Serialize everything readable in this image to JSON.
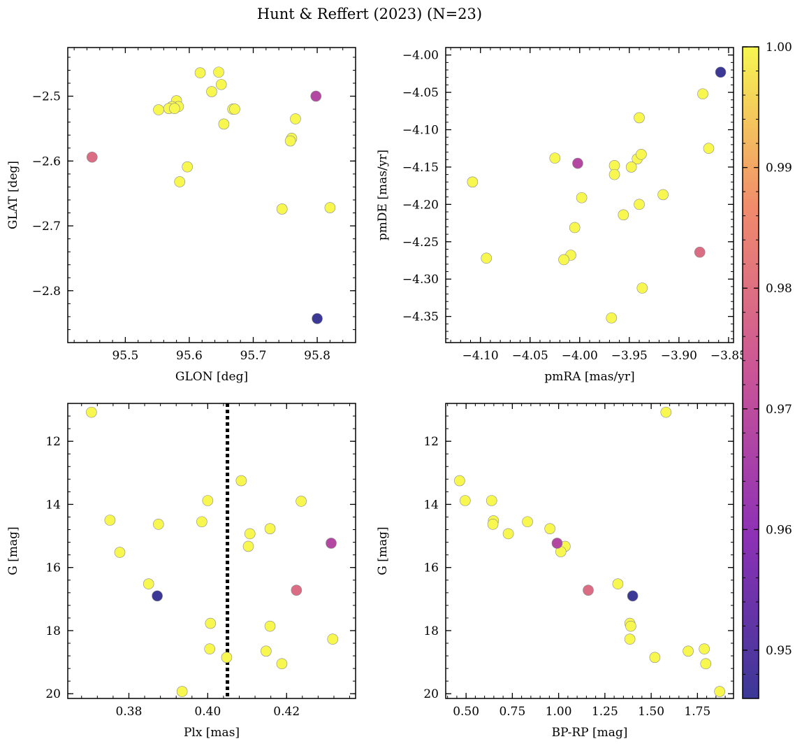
{
  "title": "Hunt & Reffert (2023) (N=23)",
  "colorbar": {
    "vmin": 0.946,
    "vmax": 1.0,
    "ticks": [
      0.95,
      0.96,
      0.97,
      0.98,
      0.99,
      1.0
    ],
    "tick_labels": [
      "0.95",
      "0.96",
      "0.97",
      "0.98",
      "0.99",
      "1.00"
    ],
    "colormap": "plasma"
  },
  "chart_data": [
    {
      "type": "scatter",
      "id": "glon-glat",
      "xlabel": "GLON [deg]",
      "ylabel": "GLAT [deg]",
      "xlim": [
        95.41,
        95.86
      ],
      "ylim": [
        -2.88,
        -2.425
      ],
      "y_inverted": false,
      "xticks": [
        95.5,
        95.6,
        95.7,
        95.8
      ],
      "xtick_labels": [
        "95.5",
        "95.6",
        "95.7",
        "95.8"
      ],
      "yticks": [
        -2.5,
        -2.6,
        -2.7,
        -2.8
      ],
      "ytick_labels": [
        "−2.5",
        "−2.6",
        "−2.7",
        "−2.8"
      ],
      "points": [
        {
          "x": 95.617,
          "y": -2.464,
          "c": 1.0
        },
        {
          "x": 95.646,
          "y": -2.463,
          "c": 1.0
        },
        {
          "x": 95.65,
          "y": -2.482,
          "c": 1.0
        },
        {
          "x": 95.635,
          "y": -2.493,
          "c": 1.0
        },
        {
          "x": 95.58,
          "y": -2.507,
          "c": 1.0
        },
        {
          "x": 95.583,
          "y": -2.516,
          "c": 1.0
        },
        {
          "x": 95.573,
          "y": -2.516,
          "c": 1.0
        },
        {
          "x": 95.552,
          "y": -2.521,
          "c": 1.0
        },
        {
          "x": 95.568,
          "y": -2.519,
          "c": 1.0
        },
        {
          "x": 95.577,
          "y": -2.519,
          "c": 1.0
        },
        {
          "x": 95.668,
          "y": -2.52,
          "c": 1.0
        },
        {
          "x": 95.671,
          "y": -2.52,
          "c": 1.0
        },
        {
          "x": 95.654,
          "y": -2.543,
          "c": 1.0
        },
        {
          "x": 95.766,
          "y": -2.535,
          "c": 1.0
        },
        {
          "x": 95.76,
          "y": -2.565,
          "c": 1.0
        },
        {
          "x": 95.758,
          "y": -2.569,
          "c": 1.0
        },
        {
          "x": 95.597,
          "y": -2.609,
          "c": 1.0
        },
        {
          "x": 95.585,
          "y": -2.632,
          "c": 1.0
        },
        {
          "x": 95.745,
          "y": -2.674,
          "c": 1.0
        },
        {
          "x": 95.82,
          "y": -2.672,
          "c": 1.0
        },
        {
          "x": 95.798,
          "y": -2.5,
          "c": 0.968
        },
        {
          "x": 95.448,
          "y": -2.594,
          "c": 0.979
        },
        {
          "x": 95.8,
          "y": -2.843,
          "c": 0.946
        }
      ]
    },
    {
      "type": "scatter",
      "id": "pm",
      "xlabel": "pmRA [mas/yr]",
      "ylabel": "pmDE [mas/yr]",
      "xlim": [
        -4.135,
        -3.845
      ],
      "ylim": [
        -4.385,
        -3.99
      ],
      "y_inverted": false,
      "xticks": [
        -4.1,
        -4.05,
        -4.0,
        -3.95,
        -3.9,
        -3.85
      ],
      "xtick_labels": [
        "−4.10",
        "−4.05",
        "−4.00",
        "−3.95",
        "−3.90",
        "−3.85"
      ],
      "yticks": [
        -4.0,
        -4.05,
        -4.1,
        -4.15,
        -4.2,
        -4.25,
        -4.3,
        -4.35
      ],
      "ytick_labels": [
        "−4.00",
        "−4.05",
        "−4.10",
        "−4.15",
        "−4.20",
        "−4.25",
        "−4.30",
        "−4.35"
      ],
      "points": [
        {
          "x": -3.876,
          "y": -4.052,
          "c": 1.0
        },
        {
          "x": -3.94,
          "y": -4.084,
          "c": 1.0
        },
        {
          "x": -3.87,
          "y": -4.125,
          "c": 1.0
        },
        {
          "x": -4.025,
          "y": -4.138,
          "c": 1.0
        },
        {
          "x": -3.942,
          "y": -4.139,
          "c": 1.0
        },
        {
          "x": -3.938,
          "y": -4.133,
          "c": 1.0
        },
        {
          "x": -3.965,
          "y": -4.148,
          "c": 1.0
        },
        {
          "x": -3.948,
          "y": -4.15,
          "c": 1.0
        },
        {
          "x": -3.965,
          "y": -4.16,
          "c": 1.0
        },
        {
          "x": -4.108,
          "y": -4.17,
          "c": 1.0
        },
        {
          "x": -3.916,
          "y": -4.187,
          "c": 1.0
        },
        {
          "x": -3.998,
          "y": -4.191,
          "c": 1.0
        },
        {
          "x": -3.94,
          "y": -4.2,
          "c": 1.0
        },
        {
          "x": -3.956,
          "y": -4.214,
          "c": 1.0
        },
        {
          "x": -4.005,
          "y": -4.231,
          "c": 1.0
        },
        {
          "x": -4.009,
          "y": -4.268,
          "c": 1.0
        },
        {
          "x": -4.016,
          "y": -4.274,
          "c": 1.0
        },
        {
          "x": -4.094,
          "y": -4.272,
          "c": 1.0
        },
        {
          "x": -3.937,
          "y": -4.312,
          "c": 1.0
        },
        {
          "x": -3.968,
          "y": -4.352,
          "c": 1.0
        },
        {
          "x": -4.002,
          "y": -4.145,
          "c": 0.968
        },
        {
          "x": -3.879,
          "y": -4.264,
          "c": 0.979
        },
        {
          "x": -3.858,
          "y": -4.023,
          "c": 0.946
        }
      ]
    },
    {
      "type": "scatter",
      "id": "plx-g",
      "xlabel": "Plx [mas]",
      "ylabel": "G [mag]",
      "xlim": [
        0.3645,
        0.4375
      ],
      "ylim": [
        20.15,
        10.8
      ],
      "y_inverted": true,
      "xticks": [
        0.38,
        0.4,
        0.42
      ],
      "xtick_labels": [
        "0.38",
        "0.40",
        "0.42"
      ],
      "yticks": [
        12,
        14,
        16,
        18,
        20
      ],
      "ytick_labels": [
        "12",
        "14",
        "16",
        "18",
        "20"
      ],
      "vline": {
        "x": 0.405,
        "style": "dotted"
      },
      "points": [
        {
          "x": 0.3705,
          "y": 11.08,
          "c": 1.0
        },
        {
          "x": 0.4085,
          "y": 13.25,
          "c": 1.0
        },
        {
          "x": 0.4,
          "y": 13.88,
          "c": 1.0
        },
        {
          "x": 0.4237,
          "y": 13.9,
          "c": 1.0
        },
        {
          "x": 0.3752,
          "y": 14.5,
          "c": 1.0
        },
        {
          "x": 0.3985,
          "y": 14.55,
          "c": 1.0
        },
        {
          "x": 0.3875,
          "y": 14.63,
          "c": 1.0
        },
        {
          "x": 0.4158,
          "y": 14.77,
          "c": 1.0
        },
        {
          "x": 0.4107,
          "y": 14.93,
          "c": 1.0
        },
        {
          "x": 0.4103,
          "y": 15.33,
          "c": 1.0
        },
        {
          "x": 0.3777,
          "y": 15.52,
          "c": 1.0
        },
        {
          "x": 0.385,
          "y": 16.52,
          "c": 1.0
        },
        {
          "x": 0.4007,
          "y": 17.77,
          "c": 1.0
        },
        {
          "x": 0.4158,
          "y": 17.86,
          "c": 1.0
        },
        {
          "x": 0.4317,
          "y": 18.27,
          "c": 1.0
        },
        {
          "x": 0.4005,
          "y": 18.58,
          "c": 1.0
        },
        {
          "x": 0.4148,
          "y": 18.65,
          "c": 1.0
        },
        {
          "x": 0.4048,
          "y": 18.85,
          "c": 1.0
        },
        {
          "x": 0.4188,
          "y": 19.05,
          "c": 1.0
        },
        {
          "x": 0.3935,
          "y": 19.93,
          "c": 1.0
        },
        {
          "x": 0.4313,
          "y": 15.23,
          "c": 0.968
        },
        {
          "x": 0.4225,
          "y": 16.72,
          "c": 0.979
        },
        {
          "x": 0.3872,
          "y": 16.9,
          "c": 0.946
        }
      ]
    },
    {
      "type": "scatter",
      "id": "cmd",
      "xlabel": "BP-RP [mag]",
      "ylabel": "G [mag]",
      "xlim": [
        0.39,
        1.945
      ],
      "ylim": [
        20.15,
        10.8
      ],
      "y_inverted": true,
      "xticks": [
        0.5,
        0.75,
        1.0,
        1.25,
        1.5,
        1.75
      ],
      "xtick_labels": [
        "0.50",
        "0.75",
        "1.00",
        "1.25",
        "1.50",
        "1.75"
      ],
      "yticks": [
        12,
        14,
        16,
        18,
        20
      ],
      "ytick_labels": [
        "12",
        "14",
        "16",
        "18",
        "20"
      ],
      "points": [
        {
          "x": 1.58,
          "y": 11.08,
          "c": 1.0
        },
        {
          "x": 0.465,
          "y": 13.25,
          "c": 1.0
        },
        {
          "x": 0.495,
          "y": 13.88,
          "c": 1.0
        },
        {
          "x": 0.638,
          "y": 13.88,
          "c": 1.0
        },
        {
          "x": 0.648,
          "y": 14.52,
          "c": 1.0
        },
        {
          "x": 0.645,
          "y": 14.63,
          "c": 1.0
        },
        {
          "x": 0.832,
          "y": 14.55,
          "c": 1.0
        },
        {
          "x": 0.953,
          "y": 14.77,
          "c": 1.0
        },
        {
          "x": 0.728,
          "y": 14.93,
          "c": 1.0
        },
        {
          "x": 1.035,
          "y": 15.33,
          "c": 1.0
        },
        {
          "x": 1.012,
          "y": 15.5,
          "c": 1.0
        },
        {
          "x": 1.32,
          "y": 16.52,
          "c": 1.0
        },
        {
          "x": 1.385,
          "y": 17.77,
          "c": 1.0
        },
        {
          "x": 1.39,
          "y": 17.86,
          "c": 1.0
        },
        {
          "x": 1.385,
          "y": 18.27,
          "c": 1.0
        },
        {
          "x": 1.787,
          "y": 18.58,
          "c": 1.0
        },
        {
          "x": 1.7,
          "y": 18.65,
          "c": 1.0
        },
        {
          "x": 1.52,
          "y": 18.85,
          "c": 1.0
        },
        {
          "x": 1.795,
          "y": 19.05,
          "c": 1.0
        },
        {
          "x": 1.87,
          "y": 19.93,
          "c": 1.0
        },
        {
          "x": 0.992,
          "y": 15.23,
          "c": 0.968
        },
        {
          "x": 1.16,
          "y": 16.72,
          "c": 0.979
        },
        {
          "x": 1.4,
          "y": 16.9,
          "c": 0.946
        }
      ]
    }
  ]
}
